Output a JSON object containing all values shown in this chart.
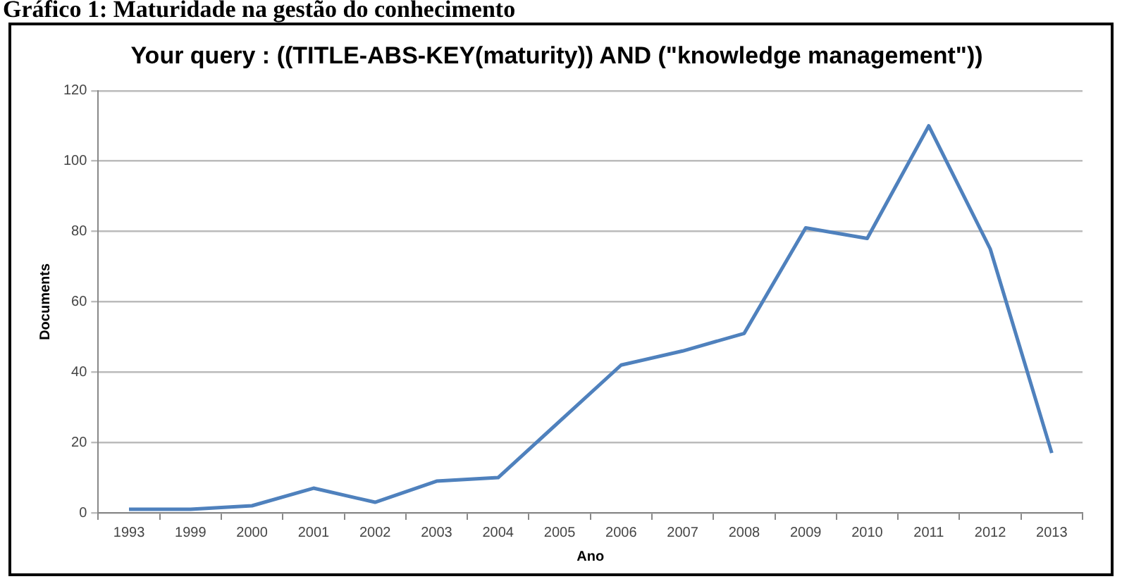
{
  "chart_data": {
    "type": "line",
    "title": "Your query : ((TITLE-ABS-KEY(maturity)) AND (\"knowledge management\"))",
    "annotations": [
      "Gráfico 1: Maturidade na gestão do conhecimento"
    ],
    "xlabel": "Ano",
    "ylabel": "Documents",
    "categories": [
      "1993",
      "1999",
      "2000",
      "2001",
      "2002",
      "2003",
      "2004",
      "2005",
      "2006",
      "2007",
      "2008",
      "2009",
      "2010",
      "2011",
      "2012",
      "2013"
    ],
    "series": [
      {
        "color": "#4f81bd",
        "values": [
          1,
          1,
          2,
          7,
          3,
          9,
          10,
          26,
          42,
          46,
          51,
          81,
          78,
          110,
          75,
          17
        ]
      }
    ],
    "ylim": [
      0,
      120
    ],
    "yticks": [
      0,
      20,
      40,
      60,
      80,
      100,
      120
    ],
    "grid": "y",
    "legend": false,
    "marker": "none",
    "line_style": "solid"
  }
}
